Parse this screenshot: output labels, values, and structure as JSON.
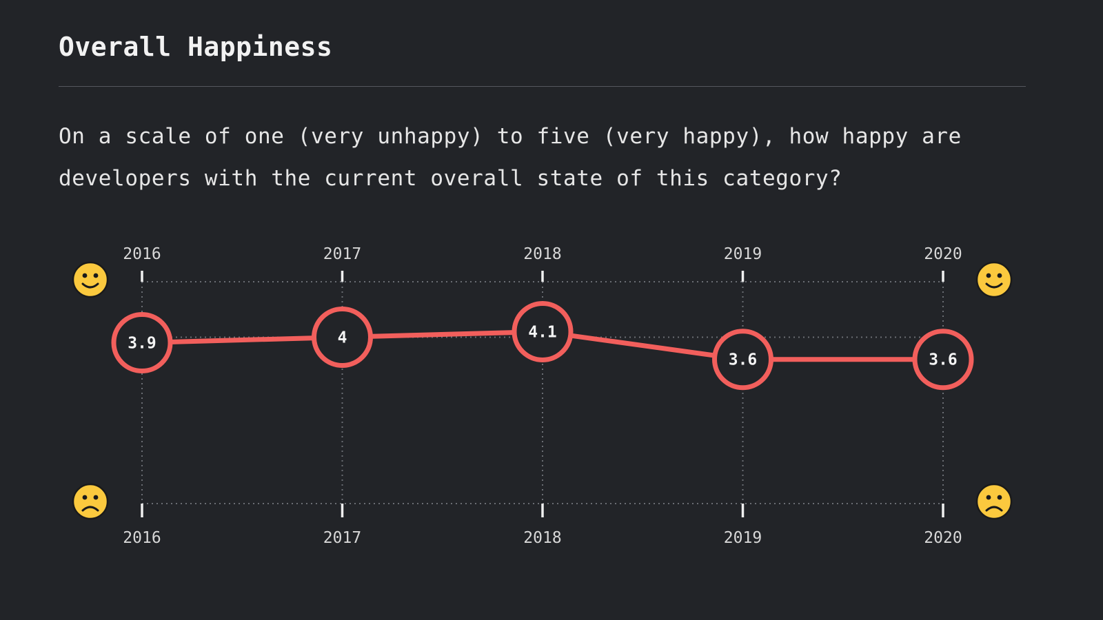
{
  "title": "Overall Happiness",
  "question": "On a scale of one (very unhappy) to five (very happy), how happy are developers with the current overall state of this category?",
  "colors": {
    "background": "#222428",
    "accent": "#f25f5c",
    "grid": "#6b6e74",
    "emoji_face": "#fbc93e"
  },
  "icons": {
    "top": "happy-face-icon",
    "bottom": "sad-face-icon"
  },
  "chart_data": {
    "type": "line",
    "x": [
      "2016",
      "2017",
      "2018",
      "2019",
      "2020"
    ],
    "series": [
      {
        "values": [
          3.9,
          4,
          4.1,
          3.6,
          3.6
        ]
      }
    ],
    "point_labels": [
      "3.9",
      "4",
      "4.1",
      "3.6",
      "3.6"
    ],
    "ylim": [
      1,
      5
    ],
    "y_gridlines": [
      5,
      4,
      3,
      2,
      1
    ],
    "axis_labels_top": [
      "2016",
      "2017",
      "2018",
      "2019",
      "2020"
    ],
    "axis_labels_bottom": [
      "2016",
      "2017",
      "2018",
      "2019",
      "2020"
    ],
    "grid": true
  }
}
